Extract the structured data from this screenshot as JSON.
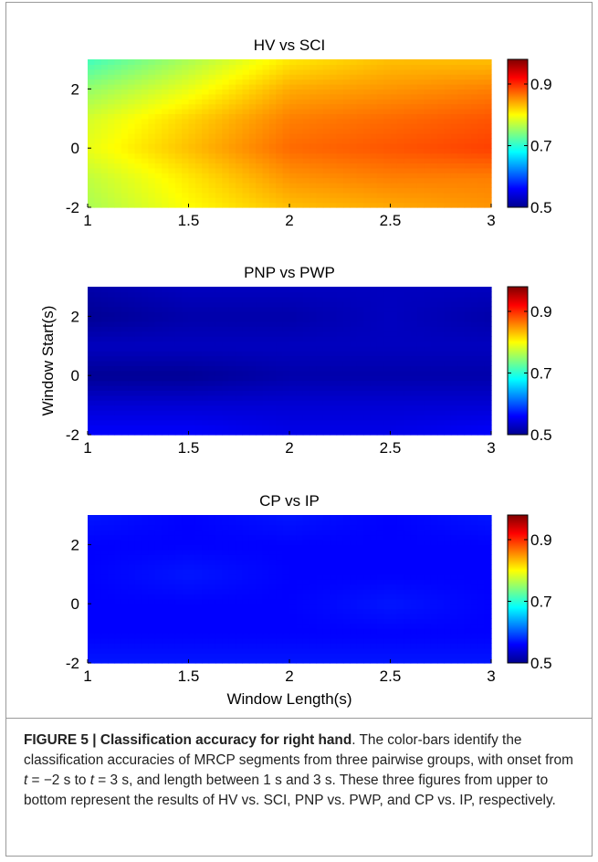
{
  "colorbar": {
    "tick_labels": [
      "0.9",
      "0.7",
      "0.5"
    ],
    "range": [
      0.5,
      0.98
    ],
    "colormap": "jet"
  },
  "chart_data": [
    {
      "type": "heatmap",
      "title": "HV vs SCI",
      "xlabel": "",
      "ylabel": "",
      "xlim": [
        1,
        3
      ],
      "ylim": [
        -2,
        3
      ],
      "x_ticks": [
        "1",
        "1.5",
        "2",
        "2.5",
        "3"
      ],
      "y_ticks": [
        "-2",
        "0",
        "2"
      ],
      "x": [
        1,
        1.5,
        2,
        2.5,
        3
      ],
      "y": [
        -2,
        -1,
        0,
        1,
        2,
        3
      ],
      "z": [
        [
          0.76,
          0.8,
          0.83,
          0.84,
          0.85
        ],
        [
          0.77,
          0.81,
          0.85,
          0.86,
          0.86
        ],
        [
          0.79,
          0.83,
          0.87,
          0.88,
          0.89
        ],
        [
          0.78,
          0.82,
          0.86,
          0.87,
          0.88
        ],
        [
          0.75,
          0.79,
          0.84,
          0.85,
          0.86
        ],
        [
          0.71,
          0.76,
          0.81,
          0.83,
          0.83
        ]
      ]
    },
    {
      "type": "heatmap",
      "title": "PNP vs PWP",
      "xlabel": "",
      "ylabel": "Window Start(s)",
      "xlim": [
        1,
        3
      ],
      "ylim": [
        -2,
        3
      ],
      "x_ticks": [
        "1",
        "1.5",
        "2",
        "2.5",
        "3"
      ],
      "y_ticks": [
        "-2",
        "0",
        "2"
      ],
      "x": [
        1,
        1.5,
        2,
        2.5,
        3
      ],
      "y": [
        -2,
        -1,
        0,
        1,
        2,
        3
      ],
      "z": [
        [
          0.56,
          0.56,
          0.55,
          0.55,
          0.56
        ],
        [
          0.54,
          0.54,
          0.54,
          0.54,
          0.54
        ],
        [
          0.51,
          0.51,
          0.52,
          0.52,
          0.52
        ],
        [
          0.53,
          0.53,
          0.53,
          0.53,
          0.53
        ],
        [
          0.51,
          0.52,
          0.52,
          0.53,
          0.52
        ],
        [
          0.52,
          0.53,
          0.53,
          0.53,
          0.53
        ]
      ]
    },
    {
      "type": "heatmap",
      "title": "CP vs IP",
      "xlabel": "Window Length(s)",
      "ylabel": "",
      "xlim": [
        1,
        3
      ],
      "ylim": [
        -2,
        3
      ],
      "x_ticks": [
        "1",
        "1.5",
        "2",
        "2.5",
        "3"
      ],
      "y_ticks": [
        "-2",
        "0",
        "2"
      ],
      "x": [
        1,
        1.5,
        2,
        2.5,
        3
      ],
      "y": [
        -2,
        -1,
        0,
        1,
        2,
        3
      ],
      "z": [
        [
          0.57,
          0.57,
          0.57,
          0.57,
          0.57
        ],
        [
          0.56,
          0.56,
          0.56,
          0.56,
          0.56
        ],
        [
          0.56,
          0.56,
          0.56,
          0.57,
          0.56
        ],
        [
          0.56,
          0.57,
          0.56,
          0.56,
          0.56
        ],
        [
          0.56,
          0.56,
          0.56,
          0.56,
          0.56
        ],
        [
          0.57,
          0.56,
          0.57,
          0.56,
          0.57
        ]
      ]
    }
  ],
  "caption": {
    "label": "FIGURE 5 | Classification accuracy for right hand",
    "text_1": ". The color-bars identify the classification accuracies of MRCP segments from three pairwise groups, with onset from ",
    "t1_var": "t",
    "t1_rest": " = −2 s to ",
    "t2_var": "t",
    "t2_rest": " = 3 s, and length between 1 s and 3 s. These three figures from upper to bottom represent the results of HV vs. SCI, PNP vs. PWP, and CP vs. IP, respectively."
  }
}
